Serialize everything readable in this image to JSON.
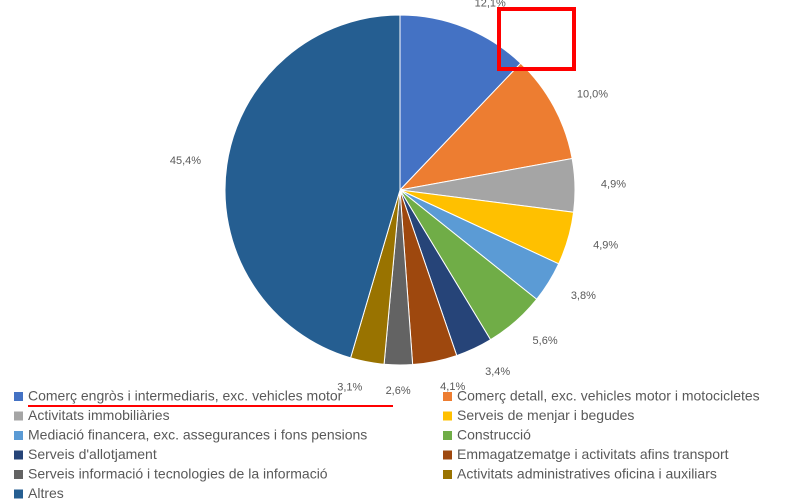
{
  "chart_data": {
    "type": "pie",
    "categories": [
      "Comerç engròs i intermediaris, exc. vehicles motor",
      "Comerç detall, exc. vehicles motor i motocicletes",
      "Activitats immobiliàries",
      "Serveis de menjar i begudes",
      "Mediació financera, exc. assegurances i fons pensions",
      "Construcció",
      "Serveis d'allotjament",
      "Emmagatzematge i activitats afins transport",
      "Serveis informació i tecnologies de la informació",
      "Activitats administratives oficina i auxiliars",
      "Altres"
    ],
    "values": [
      12.1,
      10.0,
      4.9,
      4.9,
      3.8,
      5.6,
      3.4,
      4.1,
      2.6,
      3.1,
      45.4
    ],
    "value_labels": [
      "12,1%",
      "10,0%",
      "4,9%",
      "4,9%",
      "3,8%",
      "5,6%",
      "3,4%",
      "4,1%",
      "2,6%",
      "3,1%",
      "45,4%"
    ],
    "colors": [
      "#4472c4",
      "#ed7d31",
      "#a5a5a5",
      "#ffc000",
      "#5b9bd5",
      "#70ad47",
      "#264478",
      "#9e480e",
      "#636363",
      "#997300",
      "#255e91"
    ]
  }
}
